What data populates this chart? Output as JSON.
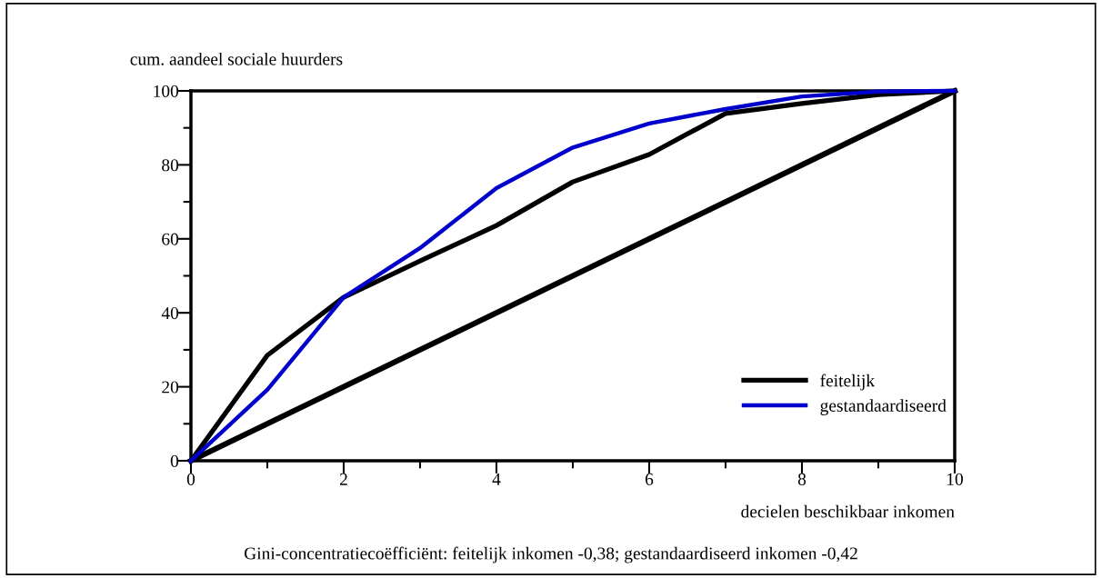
{
  "chart_data": {
    "type": "line",
    "ylabel": "cum. aandeel sociale huurders",
    "xlabel": "decielen beschikbaar inkomen",
    "annotations": [
      "Gini-concentratiecoëfficiënt: feitelijk inkomen -0,38; gestandaardiseerd inkomen -0,42"
    ],
    "x": [
      0,
      1,
      2,
      3,
      4,
      5,
      6,
      7,
      8,
      9,
      10
    ],
    "series": [
      {
        "name": "feitelijk",
        "color": "#000000",
        "values": [
          0,
          28.5,
          44.2,
          54,
          63.6,
          75.4,
          82.8,
          93.9,
          96.6,
          99,
          100
        ]
      },
      {
        "name": "gestandaardiseerd",
        "color": "#0000cc",
        "values": [
          0,
          19.2,
          44.2,
          57.5,
          73.7,
          84.7,
          91.2,
          95.1,
          98.5,
          99.8,
          100
        ]
      },
      {
        "color": "#000000",
        "x": [
          0,
          10
        ],
        "values": [
          0,
          100
        ]
      }
    ],
    "xlim": [
      0,
      10
    ],
    "ylim": [
      0,
      100
    ],
    "xticks": [
      0,
      {
        "value": 1,
        "label": null
      },
      2,
      {
        "value": 3,
        "label": null
      },
      4,
      {
        "value": 5,
        "label": null
      },
      6,
      {
        "value": 7,
        "label": null
      },
      8,
      {
        "value": 9,
        "label": null
      },
      10
    ],
    "yticks": [
      0,
      {
        "value": 10,
        "label": null
      },
      20,
      {
        "value": 30,
        "label": null
      },
      40,
      {
        "value": 50,
        "label": null
      },
      60,
      {
        "value": 70,
        "label": null
      },
      80,
      {
        "value": 90,
        "label": null
      },
      100
    ],
    "grid": false,
    "legend": "bottom right",
    "marker": "none",
    "line_style": "solid"
  }
}
